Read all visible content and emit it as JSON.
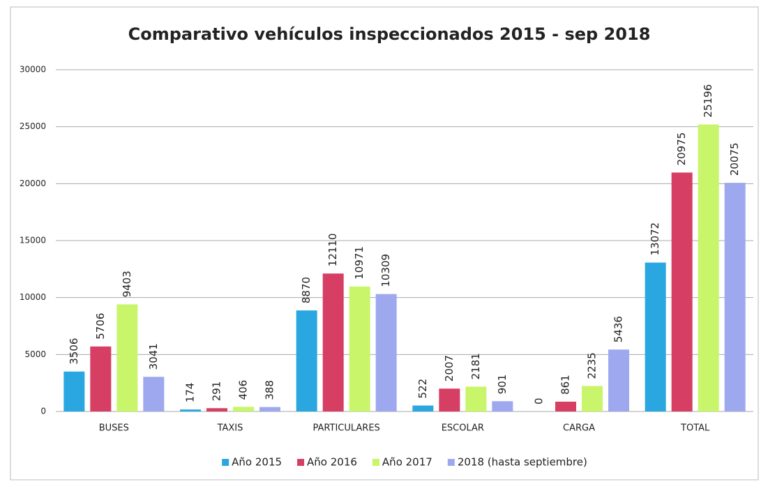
{
  "chart_data": {
    "type": "bar",
    "title": "Comparativo vehículos inspeccionados 2015 - sep 2018",
    "categories": [
      "BUSES",
      "TAXIS",
      "PARTICULARES",
      "ESCOLAR",
      "CARGA",
      "TOTAL"
    ],
    "series": [
      {
        "name": "Año 2015",
        "color": "#2aa7e0",
        "values": [
          3506,
          174,
          8870,
          522,
          0,
          13072
        ]
      },
      {
        "name": "Año 2016",
        "color": "#d63f63",
        "values": [
          5706,
          291,
          12110,
          2007,
          861,
          20975
        ]
      },
      {
        "name": "Año 2017",
        "color": "#c8f56a",
        "values": [
          9403,
          406,
          10971,
          2181,
          2235,
          25196
        ]
      },
      {
        "name": "2018 (hasta septiembre)",
        "color": "#9ea8ee",
        "values": [
          3041,
          388,
          10309,
          901,
          5436,
          20075
        ]
      }
    ],
    "ylim": [
      0,
      30000
    ],
    "yticks": [
      0,
      5000,
      10000,
      15000,
      20000,
      25000,
      30000
    ],
    "grid": true,
    "legend": "bottom"
  }
}
